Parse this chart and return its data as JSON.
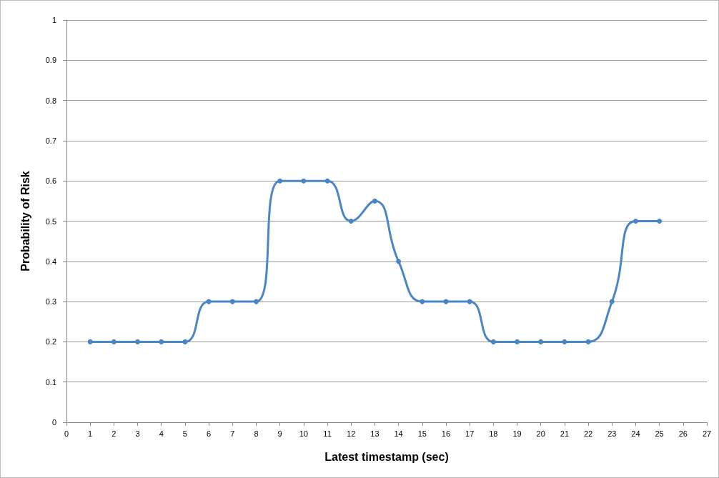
{
  "chart_data": {
    "type": "line",
    "xlabel": "Latest timestamp (sec)",
    "ylabel": "Probability of Risk",
    "x": [
      1,
      2,
      3,
      4,
      5,
      6,
      7,
      8,
      9,
      10,
      11,
      12,
      13,
      14,
      15,
      16,
      17,
      18,
      19,
      20,
      21,
      22,
      23,
      24,
      25
    ],
    "series": [
      {
        "color": "#4a86c5",
        "values": [
          0.2,
          0.2,
          0.2,
          0.2,
          0.2,
          0.3,
          0.3,
          0.3,
          0.6,
          0.6,
          0.6,
          0.5,
          0.55,
          0.4,
          0.3,
          0.3,
          0.3,
          0.2,
          0.2,
          0.2,
          0.2,
          0.2,
          0.3,
          0.5,
          0.5
        ]
      }
    ],
    "xlim": [
      0,
      27
    ],
    "xticks": [
      0,
      1,
      2,
      3,
      4,
      5,
      6,
      7,
      8,
      9,
      10,
      11,
      12,
      13,
      14,
      15,
      16,
      17,
      18,
      19,
      20,
      21,
      22,
      23,
      24,
      25,
      26,
      27
    ],
    "ylim": [
      0,
      1
    ],
    "yticks": [
      0,
      0.1,
      0.2,
      0.3,
      0.4,
      0.5,
      0.6,
      0.7,
      0.8,
      0.9,
      1
    ],
    "grid": "y",
    "marker": "circle",
    "line_style": "solid"
  }
}
